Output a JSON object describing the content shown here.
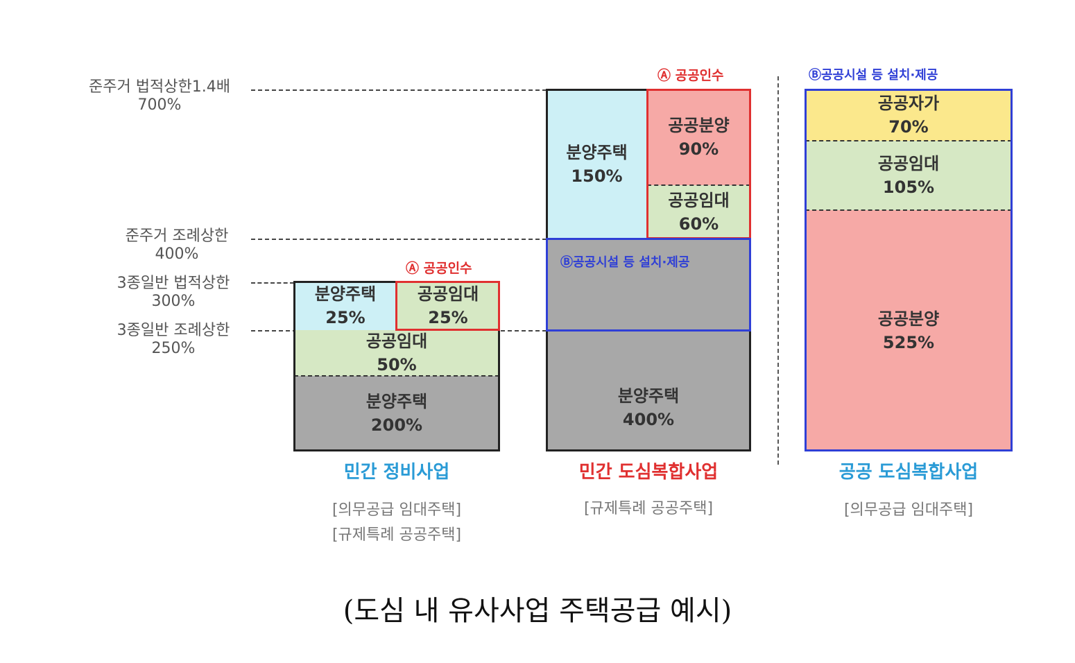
{
  "levels": [
    {
      "label": "준주거 법적상한1.4배",
      "value": "700%"
    },
    {
      "label": "준주거 조례상한",
      "value": "400%"
    },
    {
      "label": "3종일반 법적상한",
      "value": "300%"
    },
    {
      "label": "3종일반 조례상한",
      "value": "250%"
    }
  ],
  "projects": [
    {
      "title": "민간 정비사업",
      "title_color": "#2a9bd6",
      "subtitle_lines": [
        "[의무공급 임대주택]",
        "[규제특례 공공주택]"
      ],
      "annotation": "Ⓐ 공공인수",
      "blocks": [
        {
          "label": "분양주택",
          "value": "25%",
          "color": "#cdf0f6"
        },
        {
          "label": "공공임대",
          "value": "25%",
          "color": "#d6e8c4"
        },
        {
          "label": "공공임대",
          "value": "50%",
          "color": "#d6e8c4"
        },
        {
          "label": "분양주택",
          "value": "200%",
          "color": "#a8a8a8"
        }
      ]
    },
    {
      "title": "민간 도심복합사업",
      "title_color": "#e03030",
      "subtitle_lines": [
        "[규제특례 공공주택]"
      ],
      "annotation_a": "Ⓐ 공공인수",
      "annotation_b": "Ⓑ공공시설 등 설치·제공",
      "blocks": [
        {
          "label": "분양주택",
          "value": "150%",
          "color": "#cdf0f6"
        },
        {
          "label": "공공분양",
          "value": "90%",
          "color": "#f6a9a6"
        },
        {
          "label": "공공임대",
          "value": "60%",
          "color": "#d6e8c4"
        },
        {
          "label": "분양주택",
          "value": "400%",
          "color": "#a8a8a8"
        }
      ]
    },
    {
      "title": "공공 도심복합사업",
      "title_color": "#2a9bd6",
      "subtitle_lines": [
        "[의무공급 임대주택]"
      ],
      "annotation": "Ⓑ공공시설 등 설치·제공",
      "blocks": [
        {
          "label": "공공자가",
          "value": "70%",
          "color": "#fbe88c"
        },
        {
          "label": "공공임대",
          "value": "105%",
          "color": "#d6e8c4"
        },
        {
          "label": "공공분양",
          "value": "525%",
          "color": "#f6a9a6"
        }
      ]
    }
  ],
  "caption": "(도심 내 유사사업 주택공급 예시)"
}
